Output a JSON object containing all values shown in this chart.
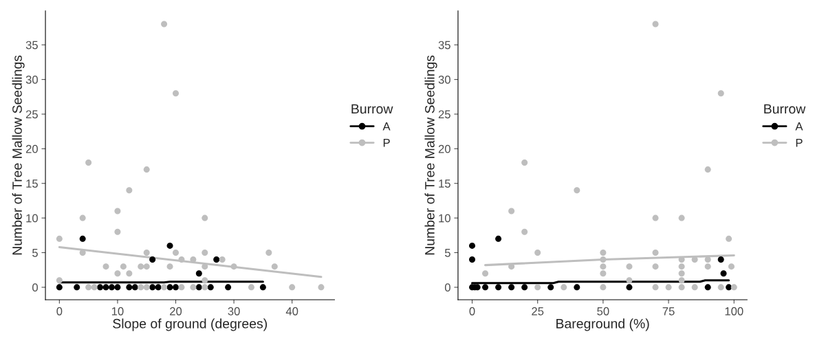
{
  "chart_data": [
    {
      "type": "scatter",
      "xlabel": "Slope of ground (degrees)",
      "ylabel": "Number of Tree Mallow Seedlings",
      "legend_title": "Burrow",
      "legend": "right",
      "xlim": [
        -2.4,
        47.3
      ],
      "ylim": [
        -1.8,
        39.9
      ],
      "xticks": [
        0,
        10,
        20,
        30,
        40
      ],
      "yticks": [
        0,
        5,
        10,
        15,
        20,
        25,
        30,
        35
      ],
      "series": [
        {
          "type": "line",
          "color": "#bebebe",
          "x": [
            0,
            45
          ],
          "values": [
            5.8,
            1.5
          ]
        },
        {
          "type": "line",
          "color": "#000000",
          "x": [
            0,
            18,
            19,
            35
          ],
          "values": [
            0.7,
            0.7,
            0.8,
            0.8
          ]
        },
        {
          "name": "A",
          "color": "#000000",
          "marker": "circle",
          "x": [
            4,
            19,
            16,
            27,
            24,
            0,
            3,
            7,
            8,
            9,
            10,
            12,
            13,
            16,
            17,
            19,
            20,
            24,
            26,
            29,
            35
          ],
          "values": [
            7,
            6,
            4,
            4,
            2,
            0,
            0,
            0,
            0,
            0,
            0,
            0,
            0,
            0,
            0,
            0,
            0,
            0,
            0,
            0,
            0
          ]
        },
        {
          "name": "P",
          "color": "#bebebe",
          "marker": "circle",
          "x": [
            18,
            20,
            5,
            15,
            12,
            10,
            4,
            25,
            10,
            0,
            4,
            15,
            20,
            25,
            36,
            21,
            23,
            28,
            8,
            11,
            14,
            15,
            19,
            25,
            30,
            37,
            10,
            12,
            0,
            25,
            5,
            6,
            14,
            15,
            18,
            21,
            23,
            25,
            33,
            40,
            45
          ],
          "values": [
            38,
            28,
            18,
            17,
            14,
            11,
            10,
            10,
            8,
            7,
            5,
            5,
            5,
            5,
            5,
            4,
            4,
            4,
            3,
            3,
            3,
            3,
            3,
            3,
            3,
            3,
            2,
            2,
            1,
            1,
            0,
            0,
            0,
            0,
            0,
            0,
            0,
            0,
            0,
            0,
            0
          ]
        }
      ]
    },
    {
      "type": "scatter",
      "xlabel": "Bareground (%)",
      "ylabel": "Number of Tree Mallow Seedlings",
      "legend_title": "Burrow",
      "legend": "right",
      "xlim": [
        -5.4,
        105
      ],
      "ylim": [
        -1.8,
        39.9
      ],
      "xticks": [
        0,
        25,
        50,
        75,
        100
      ],
      "yticks": [
        0,
        5,
        10,
        15,
        20,
        25,
        30,
        35
      ],
      "series": [
        {
          "type": "line",
          "color": "#bebebe",
          "x": [
            5,
            50,
            100
          ],
          "values": [
            3.2,
            4,
            4.6
          ]
        },
        {
          "type": "line",
          "color": "#000000",
          "x": [
            0,
            31,
            33,
            87,
            89,
            98
          ],
          "values": [
            0.6,
            0.6,
            0.8,
            0.8,
            1,
            1
          ]
        },
        {
          "name": "A",
          "color": "#000000",
          "marker": "circle",
          "x": [
            0,
            0,
            10,
            95,
            96,
            0,
            1,
            2,
            5,
            10,
            15,
            20,
            30,
            40,
            60,
            90,
            98
          ],
          "values": [
            6,
            4,
            7,
            4,
            2,
            0,
            0,
            0,
            0,
            0,
            0,
            0,
            0,
            0,
            0,
            0,
            0
          ]
        },
        {
          "name": "P",
          "color": "#bebebe",
          "marker": "circle",
          "x": [
            5,
            15,
            15,
            20,
            20,
            25,
            25,
            35,
            40,
            50,
            50,
            50,
            50,
            50,
            60,
            60,
            70,
            70,
            70,
            70,
            70,
            75,
            80,
            80,
            80,
            80,
            80,
            80,
            85,
            85,
            90,
            90,
            90,
            95,
            95,
            98,
            99,
            100
          ],
          "values": [
            2,
            11,
            3,
            18,
            8,
            5,
            0,
            0,
            14,
            5,
            4,
            3,
            2,
            0,
            3,
            1,
            38,
            10,
            5,
            3,
            0,
            0,
            10,
            4,
            3,
            2,
            1,
            0,
            4,
            0,
            17,
            4,
            3,
            28,
            0,
            7,
            3,
            0
          ]
        }
      ]
    }
  ]
}
